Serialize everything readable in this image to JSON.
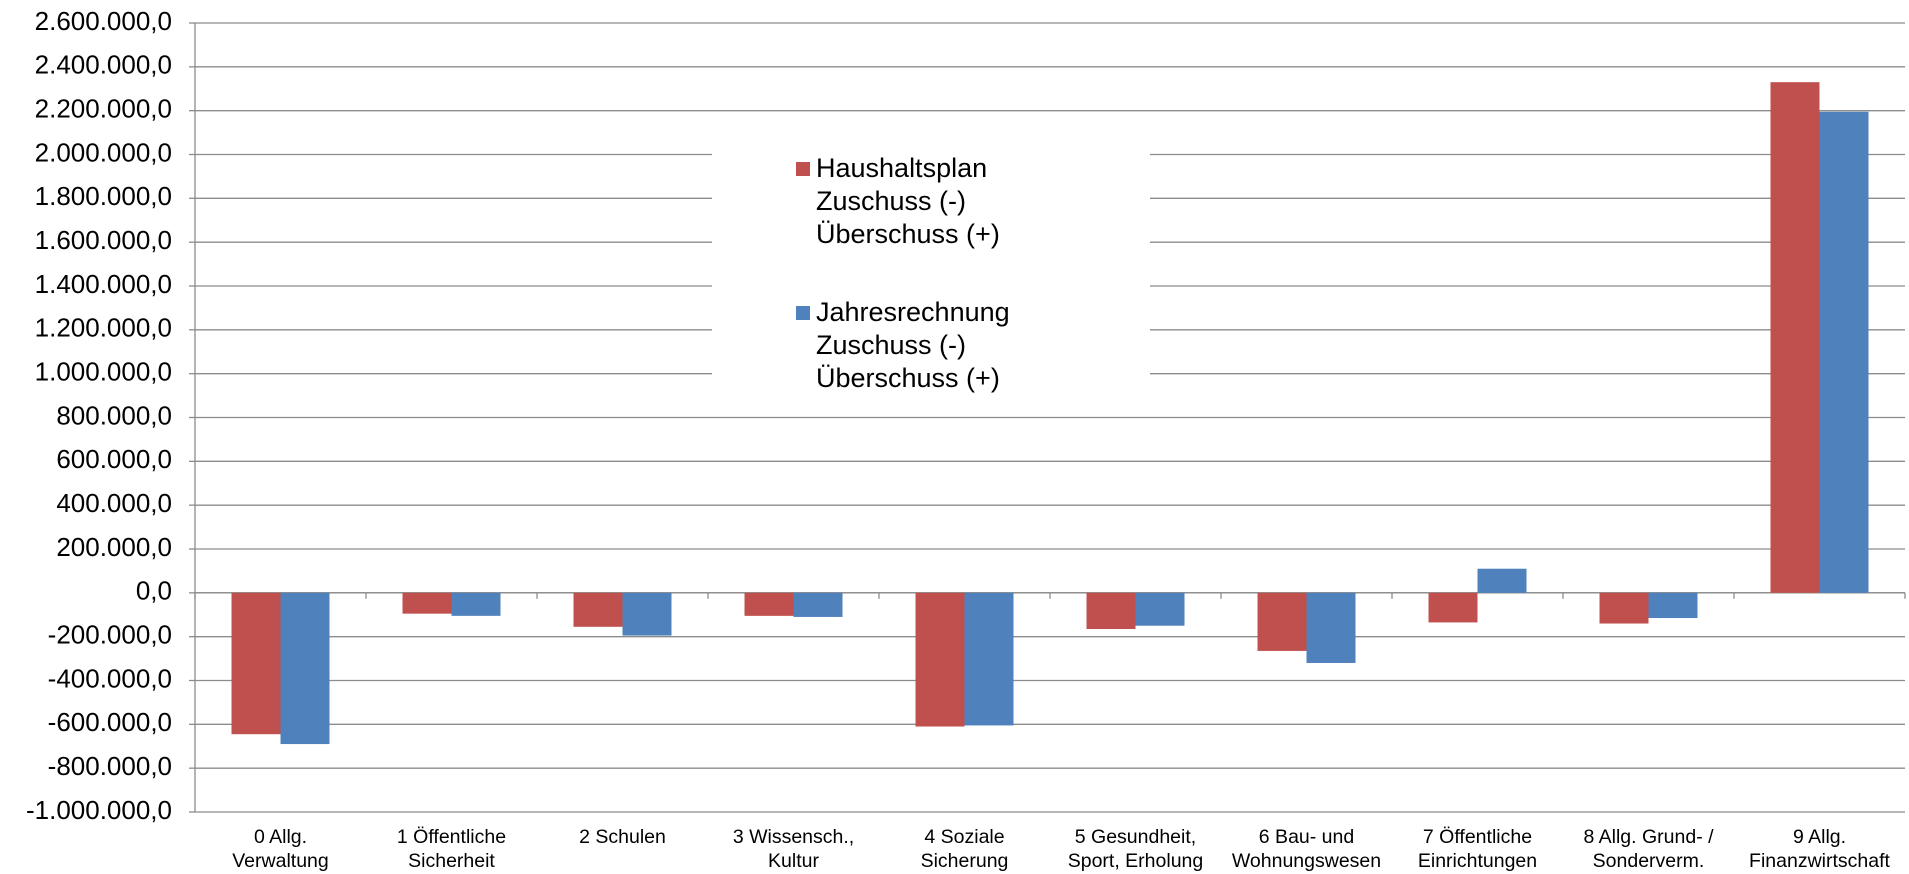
{
  "chart_data": {
    "type": "bar",
    "categories": [
      [
        "0 Allg.",
        "Verwaltung"
      ],
      [
        "1 Öffentliche",
        "Sicherheit"
      ],
      [
        "2 Schulen"
      ],
      [
        "3 Wissensch.,",
        "Kultur"
      ],
      [
        "4 Soziale",
        "Sicherung"
      ],
      [
        "5 Gesundheit,",
        "Sport, Erholung"
      ],
      [
        "6 Bau- und",
        "Wohnungswesen"
      ],
      [
        "7 Öffentliche",
        "Einrichtungen"
      ],
      [
        "8 Allg. Grund- /",
        "Sonderverm."
      ],
      [
        "9 Allg.",
        "Finanzwirtschaft"
      ]
    ],
    "series": [
      {
        "name": "Haushaltsplan Zuschuss (-) Überschuss (+)",
        "color": "#c0504d",
        "values": [
          -645000,
          -95000,
          -155000,
          -105000,
          -610000,
          -165000,
          -265000,
          -135000,
          -140000,
          2330000
        ]
      },
      {
        "name": "Jahresrechnung Zuschuss (-) Überschuss (+)",
        "color": "#4f81bd",
        "values": [
          -690000,
          -105000,
          -195000,
          -110000,
          -605000,
          -150000,
          -320000,
          110000,
          -115000,
          2195000
        ]
      }
    ],
    "ylim": [
      -1000000,
      2600000
    ],
    "yticks": [
      {
        "value": -1000000,
        "label": "-1.000.000,0"
      },
      {
        "value": -800000,
        "label": "-800.000,0"
      },
      {
        "value": -600000,
        "label": "-600.000,0"
      },
      {
        "value": -400000,
        "label": "-400.000,0"
      },
      {
        "value": -200000,
        "label": "-200.000,0"
      },
      {
        "value": 0,
        "label": "0,0"
      },
      {
        "value": 200000,
        "label": "200.000,0"
      },
      {
        "value": 400000,
        "label": "400.000,0"
      },
      {
        "value": 600000,
        "label": "600.000,0"
      },
      {
        "value": 800000,
        "label": "800.000,0"
      },
      {
        "value": 1000000,
        "label": "1.000.000,0"
      },
      {
        "value": 1200000,
        "label": "1.200.000,0"
      },
      {
        "value": 1400000,
        "label": "1.400.000,0"
      },
      {
        "value": 1600000,
        "label": "1.600.000,0"
      },
      {
        "value": 1800000,
        "label": "1.800.000,0"
      },
      {
        "value": 2000000,
        "label": "2.000.000,0"
      },
      {
        "value": 2200000,
        "label": "2.200.000,0"
      },
      {
        "value": 2400000,
        "label": "2.400.000,0"
      },
      {
        "value": 2600000,
        "label": "2.600.000,0"
      }
    ],
    "grid": true
  }
}
